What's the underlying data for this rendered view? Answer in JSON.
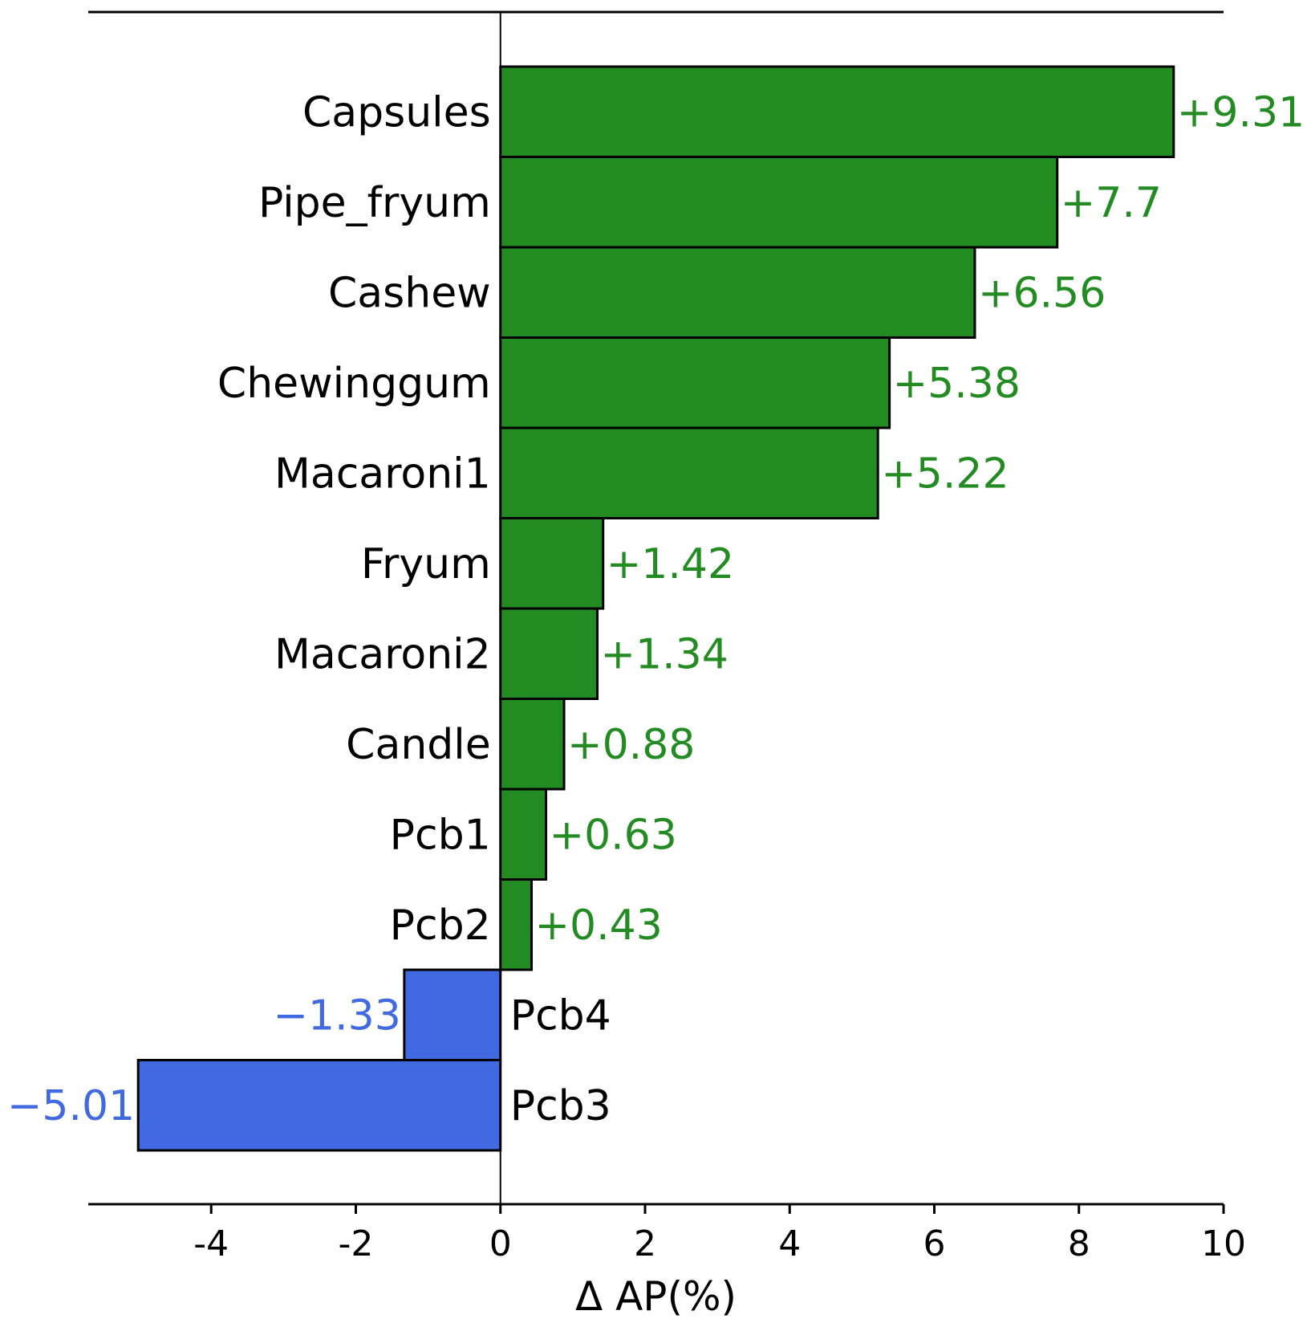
{
  "chart_data": {
    "type": "bar",
    "orientation": "horizontal",
    "categories": [
      "Capsules",
      "Pipe_fryum",
      "Cashew",
      "Chewinggum",
      "Macaroni1",
      "Fryum",
      "Macaroni2",
      "Candle",
      "Pcb1",
      "Pcb2",
      "Pcb4",
      "Pcb3"
    ],
    "values": [
      9.31,
      7.7,
      6.56,
      5.38,
      5.22,
      1.42,
      1.34,
      0.88,
      0.63,
      0.43,
      -1.33,
      -5.01
    ],
    "value_labels": [
      "+9.31",
      "+7.7",
      "+6.56",
      "+5.38",
      "+5.22",
      "+1.42",
      "+1.34",
      "+0.88",
      "+0.63",
      "+0.43",
      "−1.33",
      "−5.01"
    ],
    "xlabel": "Δ AP(%)",
    "ylabel": "",
    "xlim": [
      -5.7,
      10
    ],
    "xticks": [
      -4,
      -2,
      0,
      2,
      4,
      6,
      8,
      10
    ],
    "xtick_labels": [
      "-4",
      "-2",
      "0",
      "2",
      "4",
      "6",
      "8",
      "10"
    ],
    "grid": false,
    "colors": {
      "positive": "#228b22",
      "negative": "#4169e1",
      "edge": "#000000"
    }
  }
}
